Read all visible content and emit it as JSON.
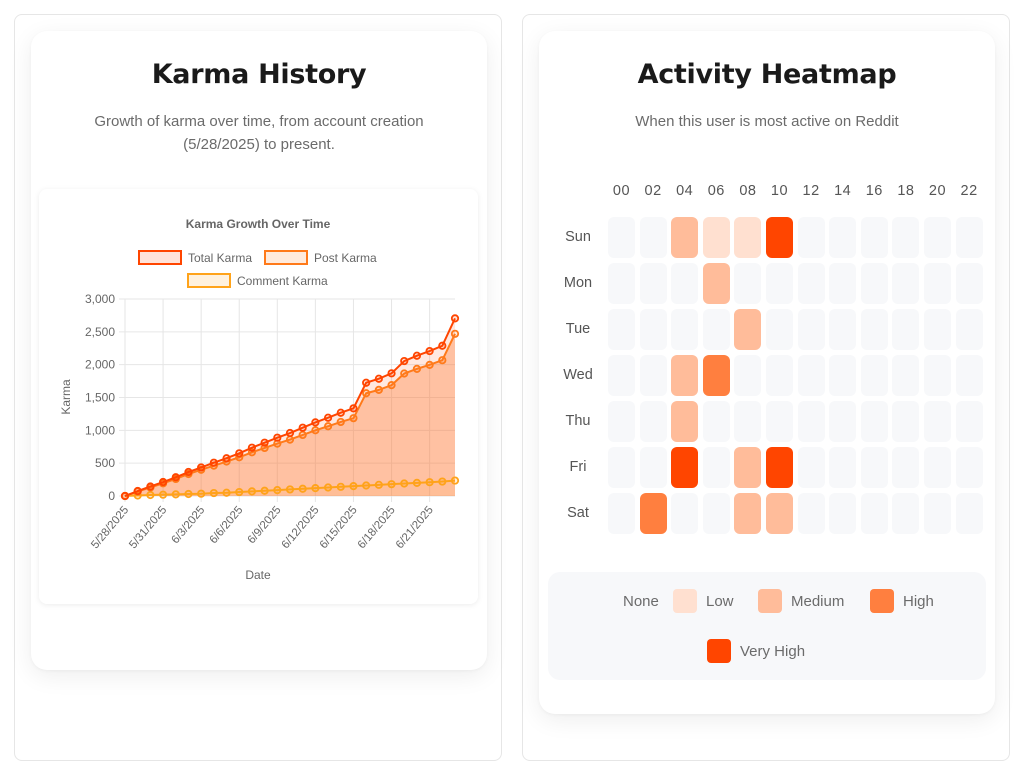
{
  "karma_card": {
    "title": "Karma History",
    "subtitle_line1": "Growth of karma over time, from account creation",
    "subtitle_line2": "(5/28/2025) to present."
  },
  "heatmap_card": {
    "title": "Activity Heatmap",
    "subtitle": "When this user is most active on Reddit"
  },
  "chart_data": [
    {
      "type": "line",
      "title": "Karma Growth Over Time",
      "xlabel": "Date",
      "ylabel": "Karma",
      "ylim": [
        0,
        3000
      ],
      "yticks": [
        "0",
        "500",
        "1,000",
        "1,500",
        "2,000",
        "2,500",
        "3,000"
      ],
      "ytick_values": [
        0,
        500,
        1000,
        1500,
        2000,
        2500,
        3000
      ],
      "xtick_labels": [
        "5/28/2025",
        "5/31/2025",
        "6/3/2025",
        "6/6/2025",
        "6/9/2025",
        "6/12/2025",
        "6/15/2025",
        "6/18/2025",
        "6/21/2025"
      ],
      "grid": true,
      "legend_position": "top",
      "x": [
        "5/28/2025",
        "5/29/2025",
        "5/30/2025",
        "5/31/2025",
        "6/1/2025",
        "6/2/2025",
        "6/3/2025",
        "6/4/2025",
        "6/5/2025",
        "6/6/2025",
        "6/7/2025",
        "6/8/2025",
        "6/9/2025",
        "6/10/2025",
        "6/11/2025",
        "6/12/2025",
        "6/13/2025",
        "6/14/2025",
        "6/15/2025",
        "6/16/2025",
        "6/17/2025",
        "6/18/2025",
        "6/19/2025",
        "6/20/2025",
        "6/21/2025",
        "6/22/2025",
        "6/23/2025"
      ],
      "series": [
        {
          "name": "Total Karma",
          "color": "#ff4500",
          "fill": "rgba(255,69,0,0.15)",
          "values": [
            0,
            76,
            145,
            213,
            285,
            365,
            435,
            507,
            575,
            650,
            736,
            812,
            888,
            959,
            1040,
            1121,
            1192,
            1268,
            1335,
            1725,
            1786,
            1868,
            2055,
            2136,
            2207,
            2288,
            2705
          ]
        },
        {
          "name": "Post Karma",
          "color": "#ff7a1a",
          "fill": "rgba(255,122,26,0.15)",
          "values": [
            0,
            68,
            130,
            193,
            260,
            335,
            400,
            462,
            525,
            590,
            666,
            732,
            798,
            859,
            930,
            1001,
            1062,
            1128,
            1185,
            1565,
            1616,
            1688,
            1865,
            1936,
            1997,
            2068,
            2470
          ]
        },
        {
          "name": "Comment Karma",
          "color": "#ffa31a",
          "fill": "rgba(255,163,26,0.15)",
          "values": [
            0,
            8,
            15,
            20,
            25,
            30,
            35,
            45,
            50,
            60,
            70,
            80,
            90,
            100,
            110,
            120,
            130,
            140,
            150,
            160,
            170,
            180,
            190,
            200,
            210,
            220,
            235
          ]
        }
      ]
    },
    {
      "type": "heatmap",
      "title": "Activity Heatmap",
      "hours": [
        "00",
        "02",
        "04",
        "06",
        "08",
        "10",
        "12",
        "14",
        "16",
        "18",
        "20",
        "22"
      ],
      "days": [
        "Sun",
        "Mon",
        "Tue",
        "Wed",
        "Thu",
        "Fri",
        "Sat"
      ],
      "levels": [
        [
          0,
          0,
          2,
          1,
          1,
          4,
          0,
          0,
          0,
          0,
          0,
          0
        ],
        [
          0,
          0,
          0,
          2,
          0,
          0,
          0,
          0,
          0,
          0,
          0,
          0
        ],
        [
          0,
          0,
          0,
          0,
          2,
          0,
          0,
          0,
          0,
          0,
          0,
          0
        ],
        [
          0,
          0,
          2,
          3,
          0,
          0,
          0,
          0,
          0,
          0,
          0,
          0
        ],
        [
          0,
          0,
          2,
          0,
          0,
          0,
          0,
          0,
          0,
          0,
          0,
          0
        ],
        [
          0,
          0,
          4,
          0,
          2,
          4,
          0,
          0,
          0,
          0,
          0,
          0
        ],
        [
          0,
          3,
          0,
          0,
          2,
          2,
          0,
          0,
          0,
          0,
          0,
          0
        ]
      ],
      "legend": [
        {
          "label": "None",
          "color": "#f7f8fa"
        },
        {
          "label": "Low",
          "color": "#ffe0d0"
        },
        {
          "label": "Medium",
          "color": "#ffbc9a"
        },
        {
          "label": "High",
          "color": "#ff7f3f"
        },
        {
          "label": "Very High",
          "color": "#ff4500"
        }
      ]
    }
  ]
}
